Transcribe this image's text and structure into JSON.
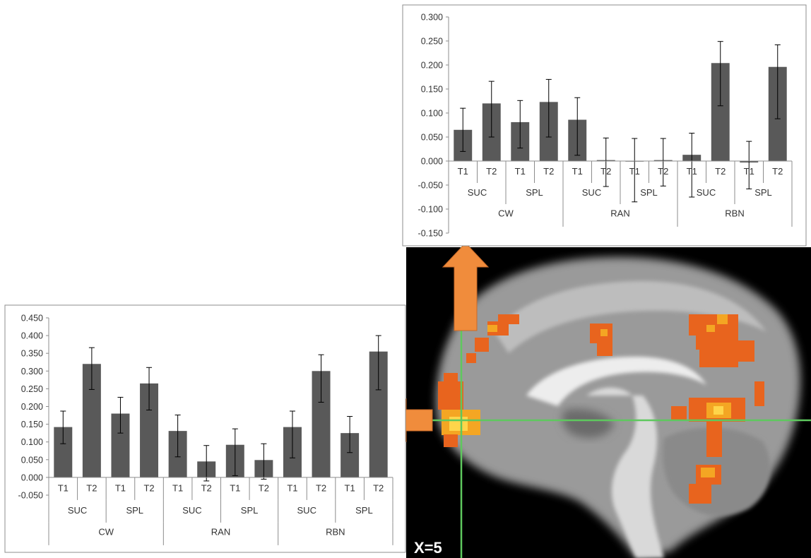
{
  "brain_image": {
    "label": "X=5"
  },
  "colors": {
    "bar": "#595959",
    "highlight_orange": "#f08c3c",
    "crosshair_green": "#5ec85e",
    "activation": [
      "#e8641e",
      "#f4a623",
      "#ffd54a"
    ]
  },
  "chart_data": [
    {
      "type": "bar",
      "title": "",
      "xlabel": "",
      "ylabel": "",
      "ylim": [
        -0.15,
        0.3
      ],
      "y_ticks": [
        "0.300",
        "0.250",
        "0.200",
        "0.150",
        "0.100",
        "0.050",
        "0.000",
        "-0.050",
        "-0.100",
        "-0.150"
      ],
      "grid": false,
      "categories": [
        "T1",
        "T2",
        "T1",
        "T2",
        "T1",
        "T2",
        "T1",
        "T2",
        "T1",
        "T2",
        "T1",
        "T2"
      ],
      "subgroups": [
        "SUC",
        "SPL",
        "SUC",
        "SPL",
        "SUC",
        "SPL"
      ],
      "groups": [
        "CW",
        "RAN",
        "RBN"
      ],
      "values": [
        0.065,
        0.12,
        0.081,
        0.123,
        0.086,
        0.002,
        0.0,
        0.002,
        0.013,
        0.204,
        -0.003,
        0.196
      ],
      "error_bottom": [
        0.02,
        0.05,
        0.027,
        0.05,
        0.012,
        -0.053,
        -0.085,
        -0.052,
        -0.075,
        0.115,
        -0.058,
        0.088
      ],
      "error_top": [
        0.11,
        0.166,
        0.126,
        0.17,
        0.132,
        0.048,
        0.047,
        0.047,
        0.058,
        0.249,
        0.041,
        0.242
      ]
    },
    {
      "type": "bar",
      "title": "",
      "xlabel": "",
      "ylabel": "",
      "ylim": [
        -0.05,
        0.45
      ],
      "y_ticks": [
        "0.450",
        "0.400",
        "0.350",
        "0.300",
        "0.250",
        "0.200",
        "0.150",
        "0.100",
        "0.050",
        "0.000",
        "-0.050"
      ],
      "grid": false,
      "categories": [
        "T1",
        "T2",
        "T1",
        "T2",
        "T1",
        "T2",
        "T1",
        "T2",
        "T1",
        "T2",
        "T1",
        "T2"
      ],
      "subgroups": [
        "SUC",
        "SPL",
        "SUC",
        "SPL",
        "SUC",
        "SPL"
      ],
      "groups": [
        "CW",
        "RAN",
        "RBN"
      ],
      "values": [
        0.142,
        0.32,
        0.18,
        0.265,
        0.131,
        0.045,
        0.092,
        0.049,
        0.142,
        0.3,
        0.125,
        0.355
      ],
      "error_bottom": [
        0.095,
        0.248,
        0.125,
        0.19,
        0.058,
        -0.01,
        0.005,
        -0.005,
        0.055,
        0.212,
        0.07,
        0.247
      ],
      "error_top": [
        0.187,
        0.366,
        0.226,
        0.31,
        0.176,
        0.09,
        0.137,
        0.095,
        0.187,
        0.346,
        0.172,
        0.4
      ]
    }
  ]
}
